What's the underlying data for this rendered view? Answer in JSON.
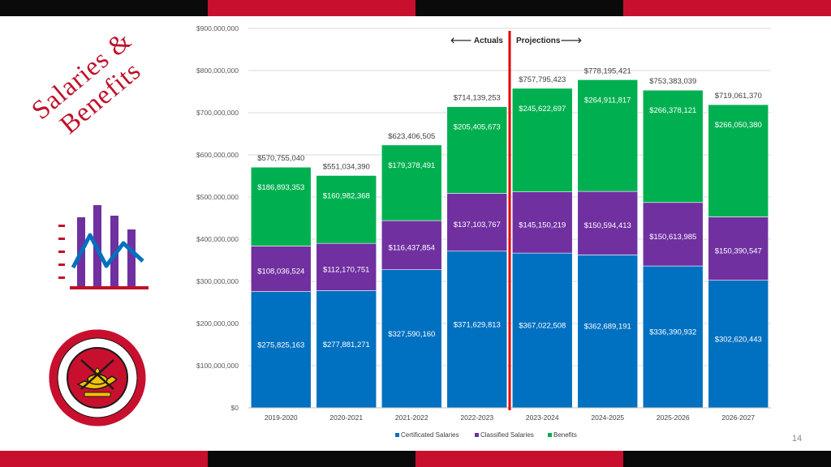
{
  "slide": {
    "title_line1": "Salaries &",
    "title_line2": "Benefits",
    "page_number": "14",
    "stripe_colors": [
      "#0a0a0a",
      "#c8102e",
      "#0a0a0a",
      "#c8102e"
    ],
    "logo_text": "SANTA ANA UNIFIED SCHOOL DISTRICT"
  },
  "chart_data": {
    "type": "bar",
    "stacked": true,
    "categories": [
      "2019-2020",
      "2020-2021",
      "2021-2022",
      "2022-2023",
      "2023-2024",
      "2024-2025",
      "2025-2026",
      "2026-2027"
    ],
    "series": [
      {
        "name": "Certificated Salaries",
        "color": "#0070c0",
        "values": [
          275825163,
          277881271,
          327590160,
          371629813,
          367022508,
          362689191,
          336390932,
          302620443
        ],
        "labels": [
          "$275,825,163",
          "$277,881,271",
          "$327,590,160",
          "$371,629,813",
          "$367,022,508",
          "$362,689,191",
          "$336,390,932",
          "$302,620,443"
        ]
      },
      {
        "name": "Classified Salaries",
        "color": "#7030a0",
        "values": [
          108036524,
          112170751,
          116437854,
          137103767,
          145150219,
          150594413,
          150613985,
          150390547
        ],
        "labels": [
          "$108,036,524",
          "$112,170,751",
          "$116,437,854",
          "$137,103,767",
          "$145,150,219",
          "$150,594,413",
          "$150,613,985",
          "$150,390,547"
        ]
      },
      {
        "name": "Benefits",
        "color": "#00b050",
        "values": [
          186893353,
          160982368,
          179378491,
          205405673,
          245622697,
          264911817,
          266378121,
          266050380
        ],
        "labels": [
          "$186,893,353",
          "$160,982,368",
          "$179,378,491",
          "$205,405,673",
          "$245,622,697",
          "$264,911,817",
          "$266,378,121",
          "$266,050,380"
        ]
      }
    ],
    "totals": [
      570755040,
      551034390,
      623406505,
      714139253,
      757795423,
      778195421,
      753383039,
      719061370
    ],
    "total_labels": [
      "$570,755,040",
      "$551,034,390",
      "$623,406,505",
      "$714,139,253",
      "$757,795,423",
      "$778,195,421",
      "$753,383,039",
      "$719,061,370"
    ],
    "ylim": [
      0,
      900000000
    ],
    "yticks": [
      0,
      100000000,
      200000000,
      300000000,
      400000000,
      500000000,
      600000000,
      700000000,
      800000000,
      900000000
    ],
    "ytick_labels": [
      "$0",
      "$100,000,000",
      "$200,000,000",
      "$300,000,000",
      "$400,000,000",
      "$500,000,000",
      "$600,000,000",
      "$700,000,000",
      "$800,000,000",
      "$900,000,000"
    ],
    "grid": true,
    "legend_position": "bottom",
    "divider": {
      "after_category": "2022-2023",
      "color": "#e00000",
      "left_label": "🡐 Actuals",
      "right_label": "Projections🡒"
    }
  }
}
